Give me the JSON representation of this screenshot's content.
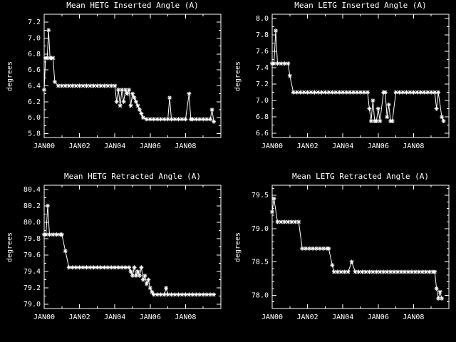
{
  "figure": {
    "background": "#000000",
    "foreground": "#ffffff"
  },
  "chart_data": {
    "type": "line",
    "layout": "2x2",
    "marker": "asterisk",
    "x_axis": {
      "lim": [
        2000,
        2010
      ],
      "tick_values": [
        2000,
        2002,
        2004,
        2006,
        2008
      ],
      "tick_labels": [
        "JAN00",
        "JAN02",
        "JAN04",
        "JAN06",
        "JAN08"
      ],
      "minor_step": 1
    },
    "charts": [
      {
        "title": "Mean HETG Inserted Angle (A)",
        "ylabel": "degrees",
        "ylim": [
          5.75,
          7.3
        ],
        "yticks": [
          5.8,
          6.0,
          6.2,
          6.4,
          6.6,
          6.8,
          7.0,
          7.2
        ],
        "ytick_labels": [
          "5.8",
          "6.0",
          "6.2",
          "6.4",
          "6.6",
          "6.8",
          "7.0",
          "7.2"
        ],
        "yminor_step": 0.1,
        "x": [
          2000.0,
          2000.08,
          2000.17,
          2000.25,
          2000.33,
          2000.42,
          2000.5,
          2000.6,
          2000.8,
          2001.0,
          2001.2,
          2001.4,
          2001.6,
          2001.8,
          2002.0,
          2002.2,
          2002.4,
          2002.6,
          2002.8,
          2003.0,
          2003.2,
          2003.4,
          2003.6,
          2003.8,
          2004.0,
          2004.1,
          2004.2,
          2004.3,
          2004.4,
          2004.5,
          2004.6,
          2004.7,
          2004.8,
          2004.9,
          2005.0,
          2005.1,
          2005.2,
          2005.3,
          2005.4,
          2005.5,
          2005.6,
          2005.8,
          2006.0,
          2006.2,
          2006.4,
          2006.6,
          2006.8,
          2007.0,
          2007.1,
          2007.2,
          2007.4,
          2007.6,
          2007.8,
          2008.0,
          2008.2,
          2008.3,
          2008.4,
          2008.6,
          2008.8,
          2009.0,
          2009.2,
          2009.4,
          2009.5,
          2009.6
        ],
        "y": [
          6.35,
          6.75,
          6.75,
          7.1,
          6.75,
          6.75,
          6.75,
          6.45,
          6.4,
          6.4,
          6.4,
          6.4,
          6.4,
          6.4,
          6.4,
          6.4,
          6.4,
          6.4,
          6.4,
          6.4,
          6.4,
          6.4,
          6.4,
          6.4,
          6.4,
          6.2,
          6.35,
          6.15,
          6.35,
          6.2,
          6.35,
          6.3,
          6.35,
          6.15,
          6.3,
          6.25,
          6.2,
          6.15,
          6.1,
          6.05,
          6.0,
          5.98,
          5.98,
          5.98,
          5.98,
          5.98,
          5.98,
          5.98,
          6.25,
          5.98,
          5.98,
          5.98,
          5.98,
          5.98,
          6.3,
          5.98,
          5.98,
          5.98,
          5.98,
          5.98,
          5.98,
          5.98,
          6.1,
          5.95
        ]
      },
      {
        "title": "Mean LETG Inserted Angle (A)",
        "ylabel": "degrees",
        "ylim": [
          6.55,
          8.05
        ],
        "yticks": [
          6.6,
          6.8,
          7.0,
          7.2,
          7.4,
          7.6,
          7.8,
          8.0
        ],
        "ytick_labels": [
          "6.6",
          "6.8",
          "7.0",
          "7.2",
          "7.4",
          "7.6",
          "7.8",
          "8.0"
        ],
        "yminor_step": 0.1,
        "x": [
          2000.0,
          2000.1,
          2000.2,
          2000.3,
          2000.5,
          2000.7,
          2000.9,
          2001.0,
          2001.2,
          2001.4,
          2001.6,
          2001.8,
          2002.0,
          2002.2,
          2002.4,
          2002.6,
          2002.8,
          2003.0,
          2003.2,
          2003.4,
          2003.6,
          2003.8,
          2004.0,
          2004.2,
          2004.4,
          2004.6,
          2004.8,
          2005.0,
          2005.2,
          2005.4,
          2005.5,
          2005.6,
          2005.7,
          2005.8,
          2005.9,
          2006.0,
          2006.1,
          2006.3,
          2006.4,
          2006.5,
          2006.6,
          2006.7,
          2006.8,
          2007.0,
          2007.2,
          2007.4,
          2007.6,
          2007.8,
          2008.0,
          2008.2,
          2008.4,
          2008.6,
          2008.8,
          2009.0,
          2009.2,
          2009.3,
          2009.4,
          2009.6,
          2009.7
        ],
        "y": [
          7.45,
          7.45,
          7.85,
          7.45,
          7.45,
          7.45,
          7.45,
          7.3,
          7.1,
          7.1,
          7.1,
          7.1,
          7.1,
          7.1,
          7.1,
          7.1,
          7.1,
          7.1,
          7.1,
          7.1,
          7.1,
          7.1,
          7.1,
          7.1,
          7.1,
          7.1,
          7.1,
          7.1,
          7.1,
          7.1,
          6.9,
          6.75,
          7.0,
          6.75,
          6.75,
          6.9,
          6.75,
          7.1,
          7.1,
          6.8,
          6.95,
          6.75,
          6.75,
          7.1,
          7.1,
          7.1,
          7.1,
          7.1,
          7.1,
          7.1,
          7.1,
          7.1,
          7.1,
          7.1,
          7.1,
          6.9,
          7.1,
          6.8,
          6.75
        ]
      },
      {
        "title": "Mean HETG Retracted Angle (A)",
        "ylabel": "degrees",
        "ylim": [
          78.95,
          80.45
        ],
        "yticks": [
          79.0,
          79.2,
          79.4,
          79.6,
          79.8,
          80.0,
          80.2,
          80.4
        ],
        "ytick_labels": [
          "79.0",
          "79.2",
          "79.4",
          "79.6",
          "79.8",
          "80.0",
          "80.2",
          "80.4"
        ],
        "yminor_step": 0.1,
        "x": [
          2000.0,
          2000.1,
          2000.2,
          2000.3,
          2000.5,
          2000.7,
          2000.9,
          2001.0,
          2001.2,
          2001.4,
          2001.6,
          2001.8,
          2002.0,
          2002.2,
          2002.4,
          2002.6,
          2002.8,
          2003.0,
          2003.2,
          2003.4,
          2003.6,
          2003.8,
          2004.0,
          2004.2,
          2004.4,
          2004.6,
          2004.8,
          2004.9,
          2005.0,
          2005.1,
          2005.2,
          2005.3,
          2005.4,
          2005.5,
          2005.6,
          2005.7,
          2005.8,
          2005.9,
          2006.0,
          2006.1,
          2006.2,
          2006.4,
          2006.6,
          2006.8,
          2006.9,
          2007.0,
          2007.2,
          2007.4,
          2007.6,
          2007.8,
          2008.0,
          2008.2,
          2008.4,
          2008.6,
          2008.8,
          2009.0,
          2009.2,
          2009.4,
          2009.6
        ],
        "y": [
          79.85,
          79.85,
          80.2,
          79.85,
          79.85,
          79.85,
          79.85,
          79.85,
          79.65,
          79.45,
          79.45,
          79.45,
          79.45,
          79.45,
          79.45,
          79.45,
          79.45,
          79.45,
          79.45,
          79.45,
          79.45,
          79.45,
          79.45,
          79.45,
          79.45,
          79.45,
          79.45,
          79.4,
          79.35,
          79.45,
          79.35,
          79.4,
          79.35,
          79.45,
          79.3,
          79.35,
          79.25,
          79.3,
          79.2,
          79.15,
          79.12,
          79.12,
          79.12,
          79.12,
          79.2,
          79.12,
          79.12,
          79.12,
          79.12,
          79.12,
          79.12,
          79.12,
          79.12,
          79.12,
          79.12,
          79.12,
          79.12,
          79.12,
          79.12
        ]
      },
      {
        "title": "Mean LETG Retracted Angle (A)",
        "ylabel": "degrees",
        "ylim": [
          77.8,
          79.65
        ],
        "yticks": [
          78.0,
          78.5,
          79.0,
          79.5
        ],
        "ytick_labels": [
          "78.0",
          "78.5",
          "79.0",
          "79.5"
        ],
        "yminor_step": 0.1,
        "x": [
          2000.0,
          2000.1,
          2000.3,
          2000.5,
          2000.7,
          2000.9,
          2001.1,
          2001.3,
          2001.5,
          2001.7,
          2001.9,
          2002.1,
          2002.3,
          2002.5,
          2002.7,
          2002.9,
          2003.1,
          2003.2,
          2003.4,
          2003.5,
          2003.7,
          2003.9,
          2004.1,
          2004.3,
          2004.5,
          2004.7,
          2004.9,
          2005.1,
          2005.3,
          2005.5,
          2005.7,
          2005.9,
          2006.1,
          2006.3,
          2006.5,
          2006.7,
          2006.9,
          2007.1,
          2007.3,
          2007.5,
          2007.7,
          2007.9,
          2008.1,
          2008.3,
          2008.5,
          2008.7,
          2008.9,
          2009.1,
          2009.2,
          2009.3,
          2009.4,
          2009.5,
          2009.6
        ],
        "y": [
          79.25,
          79.45,
          79.1,
          79.1,
          79.1,
          79.1,
          79.1,
          79.1,
          79.1,
          78.7,
          78.7,
          78.7,
          78.7,
          78.7,
          78.7,
          78.7,
          78.7,
          78.7,
          78.45,
          78.35,
          78.35,
          78.35,
          78.35,
          78.35,
          78.5,
          78.35,
          78.35,
          78.35,
          78.35,
          78.35,
          78.35,
          78.35,
          78.35,
          78.35,
          78.35,
          78.35,
          78.35,
          78.35,
          78.35,
          78.35,
          78.35,
          78.35,
          78.35,
          78.35,
          78.35,
          78.35,
          78.35,
          78.35,
          78.35,
          78.1,
          77.95,
          78.05,
          77.95
        ]
      }
    ]
  }
}
